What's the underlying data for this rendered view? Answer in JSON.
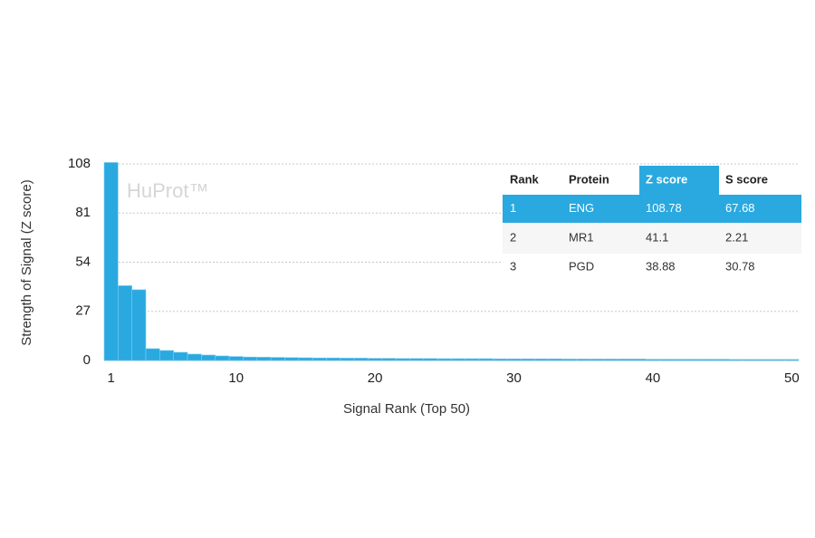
{
  "chart_data": {
    "type": "bar",
    "watermark": "HuProt™",
    "x_label": "Signal Rank (Top 50)",
    "y_label": "Strength of Signal (Z score)",
    "x": [
      1,
      2,
      3,
      4,
      5,
      6,
      7,
      8,
      9,
      10,
      11,
      12,
      13,
      14,
      15,
      16,
      17,
      18,
      19,
      20,
      21,
      22,
      23,
      24,
      25,
      26,
      27,
      28,
      29,
      30,
      31,
      32,
      33,
      34,
      35,
      36,
      37,
      38,
      39,
      40,
      41,
      42,
      43,
      44,
      45,
      46,
      47,
      48,
      49,
      50
    ],
    "values": [
      108.78,
      41.1,
      38.88,
      6.5,
      5.5,
      4.5,
      3.5,
      3,
      2.5,
      2.2,
      1.9,
      1.8,
      1.7,
      1.6,
      1.5,
      1.4,
      1.4,
      1.3,
      1.3,
      1.2,
      1.2,
      1.1,
      1.1,
      1.1,
      1.0,
      1.0,
      1.0,
      1.0,
      0.9,
      0.9,
      0.9,
      0.9,
      0.9,
      0.8,
      0.8,
      0.8,
      0.8,
      0.8,
      0.8,
      0.7,
      0.7,
      0.7,
      0.7,
      0.7,
      0.7,
      0.6,
      0.6,
      0.6,
      0.6,
      0.6
    ],
    "color": "#29a9e0",
    "xlim": [
      0.5,
      50.5
    ],
    "xticks": [
      1,
      10,
      20,
      30,
      40,
      50
    ],
    "ylim": [
      0,
      108
    ],
    "yticks": [
      0,
      27,
      54,
      81,
      108
    ],
    "grid": true,
    "table": {
      "columns": [
        "Rank",
        "Protein",
        "Z score",
        "S score"
      ],
      "rows": [
        [
          "1",
          "ENG",
          "108.78",
          "67.68"
        ],
        [
          "2",
          "MR1",
          "41.1",
          "2.21"
        ],
        [
          "3",
          "PGD",
          "38.88",
          "30.78"
        ]
      ]
    }
  }
}
